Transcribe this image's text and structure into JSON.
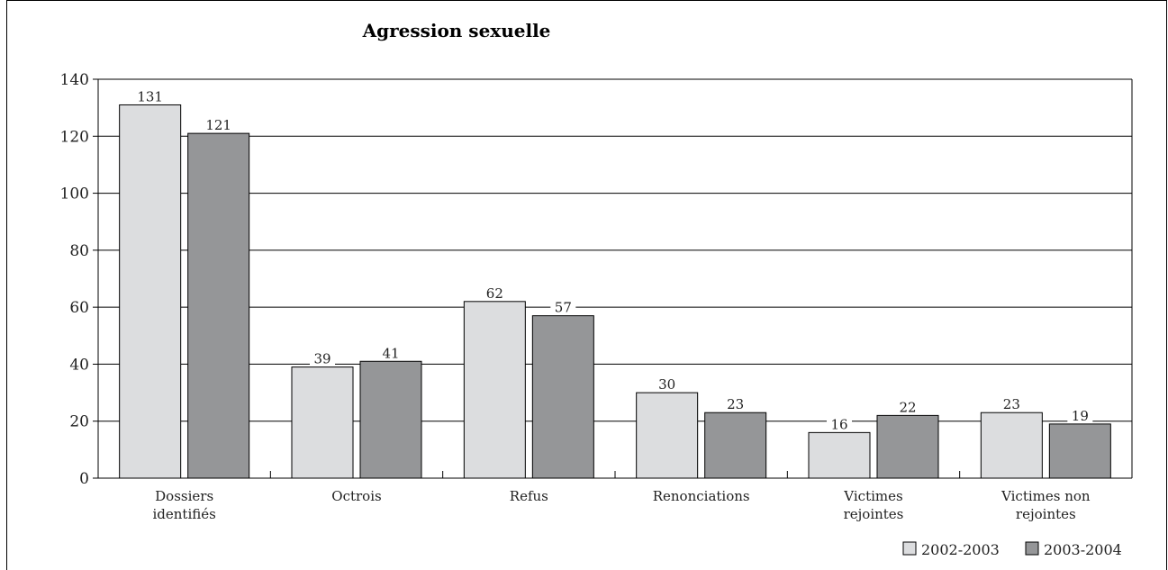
{
  "chart_data": {
    "type": "bar",
    "title": "Agression sexuelle",
    "xlabel": "",
    "ylabel": "",
    "ylim": [
      0,
      140
    ],
    "yticks": [
      0,
      20,
      40,
      60,
      80,
      100,
      120,
      140
    ],
    "grid": true,
    "legend_position": "bottom-right",
    "categories": [
      [
        "Dossiers",
        "identifiés"
      ],
      [
        "Octrois"
      ],
      [
        "Refus"
      ],
      [
        "Renonciations"
      ],
      [
        "Victimes",
        "rejointes"
      ],
      [
        "Victimes non",
        "rejointes"
      ]
    ],
    "series": [
      {
        "name": "2002-2003",
        "color": "#dcdddf",
        "values": [
          131,
          39,
          62,
          30,
          16,
          23
        ]
      },
      {
        "name": "2003-2004",
        "color": "#959698",
        "values": [
          121,
          41,
          57,
          23,
          22,
          19
        ]
      }
    ]
  }
}
